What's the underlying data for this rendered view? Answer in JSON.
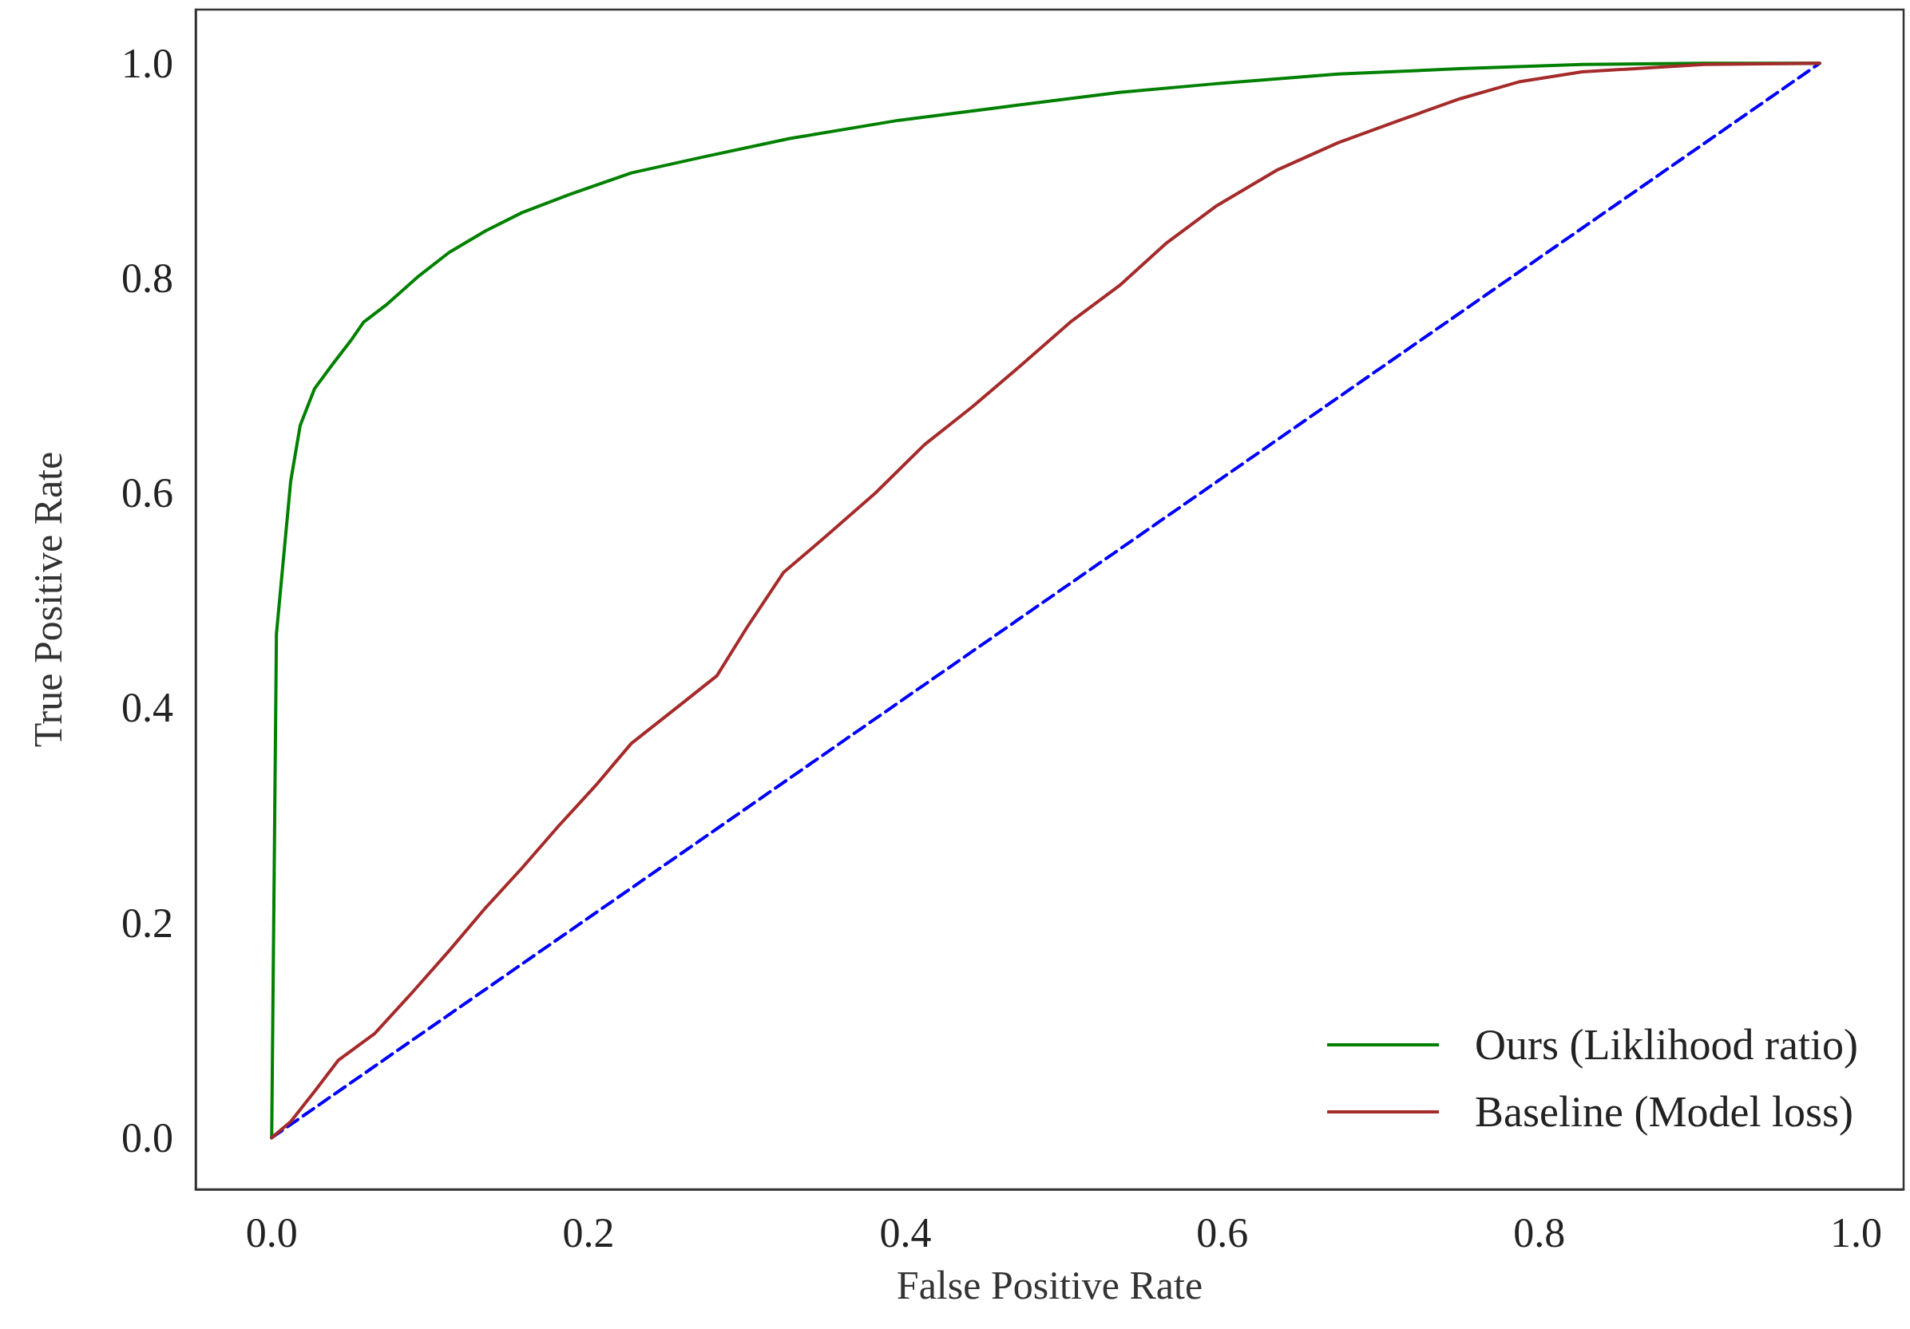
{
  "chart_data": {
    "type": "line",
    "xlabel": "False Positive Rate",
    "ylabel": "True Positive Rate",
    "xlim": [
      -0.048,
      1.03
    ],
    "ylim": [
      -0.048,
      1.05
    ],
    "xticks": [
      {
        "value": 0,
        "label": "0.0"
      },
      {
        "value": 0.2,
        "label": "0.2"
      },
      {
        "value": 0.4,
        "label": "0.4"
      },
      {
        "value": 0.6,
        "label": "0.6"
      },
      {
        "value": 0.8,
        "label": "0.8"
      },
      {
        "value": 1,
        "label": "1.0"
      }
    ],
    "yticks": [
      {
        "value": 0,
        "label": "0.0"
      },
      {
        "value": 0.2,
        "label": "0.2"
      },
      {
        "value": 0.4,
        "label": "0.4"
      },
      {
        "value": 0.6,
        "label": "0.6"
      },
      {
        "value": 0.8,
        "label": "0.8"
      },
      {
        "value": 1,
        "label": "1.0"
      }
    ],
    "grid": false,
    "legend": "bottom right",
    "marker": "none",
    "series": [
      {
        "name": "Ours (Liklihood ratio)",
        "color": "#008000",
        "line_style": "solid",
        "x": [
          0,
          0.003,
          0.012,
          0.018,
          0.027,
          0.038,
          0.05,
          0.058,
          0.073,
          0.092,
          0.112,
          0.135,
          0.158,
          0.188,
          0.227,
          0.273,
          0.327,
          0.396,
          0.465,
          0.535,
          0.596,
          0.673,
          0.75,
          0.827,
          0.904,
          0.977
        ],
        "values": [
          0,
          0.469,
          0.611,
          0.663,
          0.697,
          0.719,
          0.742,
          0.759,
          0.776,
          0.801,
          0.824,
          0.844,
          0.861,
          0.878,
          0.898,
          0.913,
          0.93,
          0.947,
          0.96,
          0.973,
          0.981,
          0.99,
          0.995,
          0.999,
          1.0,
          1.0
        ]
      },
      {
        "name": "Baseline (Model loss)",
        "color": "#a52a2a",
        "line_style": "solid",
        "x": [
          0,
          0.012,
          0.027,
          0.042,
          0.065,
          0.088,
          0.112,
          0.135,
          0.158,
          0.181,
          0.204,
          0.227,
          0.258,
          0.281,
          0.3,
          0.323,
          0.35,
          0.381,
          0.412,
          0.442,
          0.473,
          0.504,
          0.535,
          0.565,
          0.596,
          0.635,
          0.673,
          0.712,
          0.75,
          0.788,
          0.827,
          0.904,
          0.977
        ],
        "values": [
          0,
          0.015,
          0.043,
          0.072,
          0.097,
          0.134,
          0.174,
          0.214,
          0.251,
          0.29,
          0.327,
          0.367,
          0.403,
          0.43,
          0.475,
          0.526,
          0.56,
          0.6,
          0.645,
          0.68,
          0.719,
          0.759,
          0.793,
          0.833,
          0.867,
          0.901,
          0.926,
          0.947,
          0.967,
          0.983,
          0.992,
          0.999,
          1.0
        ]
      },
      {
        "color": "#0000ff",
        "line_style": "dashed",
        "x": [
          0,
          0.977
        ],
        "values": [
          0,
          1.0
        ]
      }
    ]
  }
}
